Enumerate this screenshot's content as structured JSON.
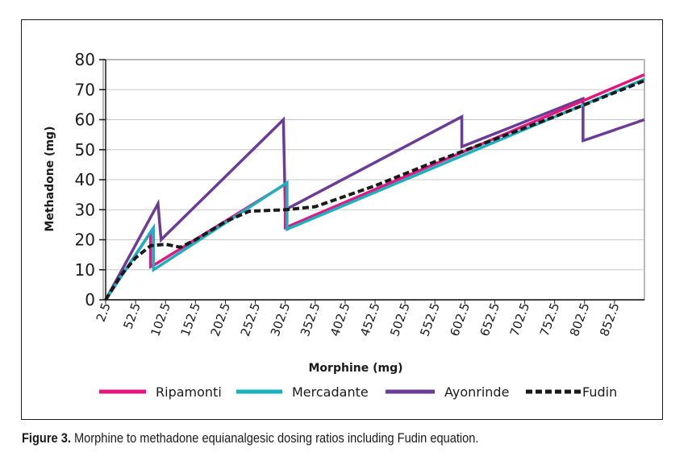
{
  "caption": {
    "label": "Figure 3.",
    "text": " Morphine to methadone equianalgesic dosing ratios including Fudin equation."
  },
  "chart_data": {
    "type": "line",
    "xlabel": "Morphine (mg)",
    "ylabel": "Methadone (mg)",
    "xlim": [
      2.5,
      902.5
    ],
    "ylim": [
      0,
      80
    ],
    "grid": true,
    "legend_position": "bottom",
    "x_ticks": [
      "2.5",
      "52.5",
      "102.5",
      "152.5",
      "202.5",
      "252.5",
      "302.5",
      "352.5",
      "402.5",
      "452.5",
      "502.5",
      "552.5",
      "602.5",
      "652.5",
      "702.5",
      "752.5",
      "802.5",
      "852.5"
    ],
    "y_ticks": [
      "0",
      "10",
      "20",
      "30",
      "40",
      "50",
      "60",
      "70",
      "80"
    ],
    "series": [
      {
        "name": "Ripamonti",
        "color": "#e5177e",
        "dash": "solid",
        "points": [
          [
            2.5,
            0
          ],
          [
            77.5,
            22.5
          ],
          [
            77.5,
            11
          ],
          [
            82.5,
            11.5
          ],
          [
            302.5,
            38.5
          ],
          [
            302.5,
            24
          ],
          [
            902.5,
            75
          ]
        ]
      },
      {
        "name": "Mercadante",
        "color": "#1bb0c0",
        "dash": "solid",
        "points": [
          [
            2.5,
            0
          ],
          [
            82.5,
            24
          ],
          [
            82.5,
            10
          ],
          [
            305.5,
            39
          ],
          [
            305.5,
            23.5
          ],
          [
            902.5,
            73.5
          ]
        ]
      },
      {
        "name": "Ayonrinde",
        "color": "#6b3c96",
        "dash": "solid",
        "points": [
          [
            2.5,
            0
          ],
          [
            90,
            32
          ],
          [
            95,
            20
          ],
          [
            299.5,
            60
          ],
          [
            302.5,
            30
          ],
          [
            597.5,
            61
          ],
          [
            597.5,
            51
          ],
          [
            800,
            67
          ],
          [
            800,
            53
          ],
          [
            902.5,
            60
          ]
        ]
      },
      {
        "name": "Fudin",
        "color": "#1a1a1a",
        "dash": "dashed",
        "points": [
          [
            2.5,
            0
          ],
          [
            27.5,
            8
          ],
          [
            52.5,
            14
          ],
          [
            77.5,
            18
          ],
          [
            102.5,
            18.5
          ],
          [
            127.5,
            17.5
          ],
          [
            152.5,
            20
          ],
          [
            202.5,
            26
          ],
          [
            242.5,
            29.5
          ],
          [
            302.5,
            30
          ],
          [
            352.5,
            31
          ],
          [
            452.5,
            38
          ],
          [
            552.5,
            46
          ],
          [
            652.5,
            53.5
          ],
          [
            752.5,
            61
          ],
          [
            852.5,
            69
          ],
          [
            902.5,
            73
          ]
        ]
      }
    ]
  }
}
